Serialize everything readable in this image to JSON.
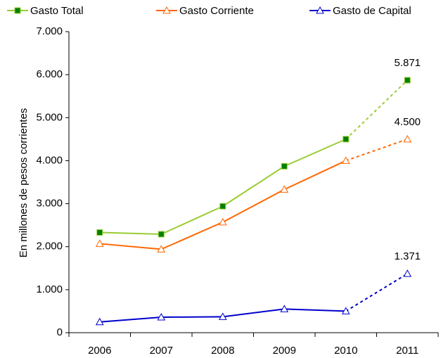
{
  "chart_data": {
    "type": "line",
    "y_label": "En millones de pesos corrientes",
    "categories": [
      "2006",
      "2007",
      "2008",
      "2009",
      "2010",
      "2011"
    ],
    "series": [
      {
        "name": "Gasto Total",
        "color": "#99cc33",
        "marker": "square",
        "marker_color": "#008000",
        "values": [
          2330,
          2290,
          2940,
          3870,
          4500,
          5871
        ],
        "value_labels": [
          null,
          null,
          null,
          null,
          null,
          "5.871"
        ]
      },
      {
        "name": "Gasto Corriente",
        "color": "#ff6600",
        "marker": "triangle",
        "marker_color": "#ffffff",
        "values": [
          2070,
          1940,
          2570,
          3330,
          4000,
          4500
        ],
        "value_labels": [
          null,
          null,
          null,
          null,
          null,
          "4.500"
        ]
      },
      {
        "name": "Gasto de Capital",
        "color": "#0000cc",
        "marker": "triangle",
        "marker_color": "#ffffff",
        "values": [
          250,
          360,
          370,
          550,
          500,
          1371
        ],
        "value_labels": [
          null,
          null,
          null,
          null,
          null,
          "1.371"
        ]
      }
    ],
    "ylim": [
      0,
      7000
    ],
    "yticks": [
      0,
      {
        "value": 1000,
        "label": "1.000"
      },
      {
        "value": 2000,
        "label": "2.000"
      },
      {
        "value": 3000,
        "label": "3.000"
      },
      {
        "value": 4000,
        "label": "4.000"
      },
      {
        "value": 5000,
        "label": "5.000"
      },
      {
        "value": 6000,
        "label": "6.000"
      },
      {
        "value": 7000,
        "label": "7.000"
      }
    ],
    "grid": false
  }
}
